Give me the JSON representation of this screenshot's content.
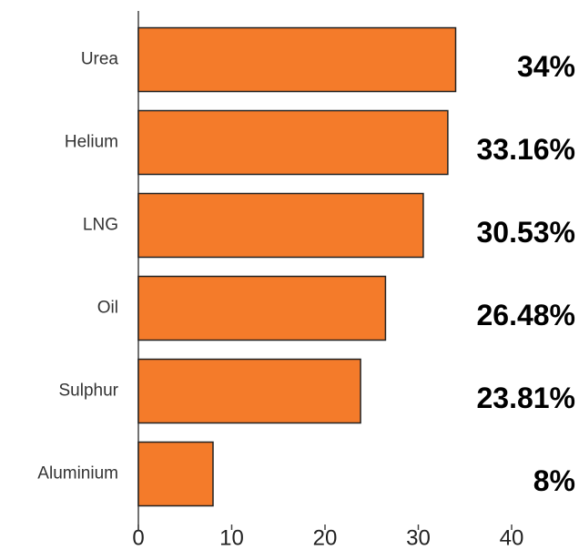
{
  "chart_data": {
    "type": "bar",
    "orientation": "horizontal",
    "categories": [
      "Urea",
      "Helium",
      "LNG",
      "Oil",
      "Sulphur",
      "Aluminium"
    ],
    "values": [
      34,
      33.16,
      30.53,
      26.48,
      23.81,
      8
    ],
    "value_labels": [
      "34%",
      "33.16%",
      "30.53%",
      "26.48%",
      "23.81%",
      "8%"
    ],
    "color": "#f47b2a",
    "xlim": [
      0,
      40
    ],
    "xticks": [
      0,
      10,
      20,
      30,
      40
    ]
  }
}
